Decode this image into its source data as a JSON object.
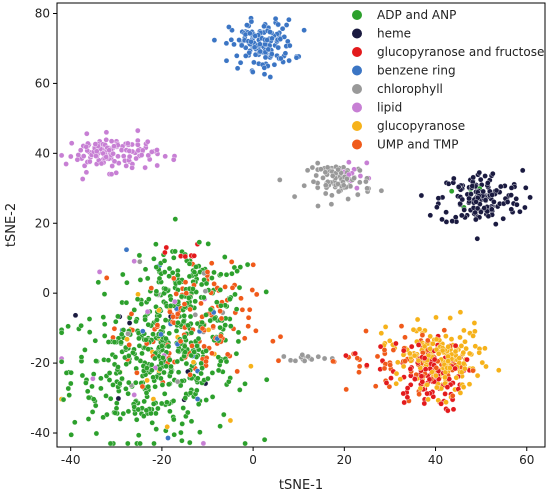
{
  "chart_data": {
    "type": "scatter",
    "title": "",
    "xlabel": "tSNE-1",
    "ylabel": "tSNE-2",
    "xlim": [
      -43,
      64
    ],
    "ylim": [
      -44,
      83
    ],
    "xticks": [
      -40,
      -20,
      0,
      20,
      40,
      60
    ],
    "yticks": [
      -40,
      -20,
      0,
      20,
      40,
      60,
      80
    ],
    "grid": false,
    "legend_position": "top-right",
    "series": [
      {
        "name": "ADP and ANP",
        "color": "#2ca02c",
        "clusters": [
          {
            "cx": -22,
            "cy": -22,
            "sx": 9,
            "sy": 10,
            "n": 360
          },
          {
            "cx": -14,
            "cy": -5,
            "sx": 7,
            "sy": 8,
            "n": 160
          },
          {
            "cx": -17,
            "cy": 5,
            "sx": 5,
            "sy": 4,
            "n": 40
          },
          {
            "cx": 45,
            "cy": 29,
            "sx": 2,
            "sy": 2,
            "n": 6
          }
        ]
      },
      {
        "name": "heme",
        "color": "#1a1a40",
        "clusters": [
          {
            "cx": 50,
            "cy": 27,
            "sx": 4.5,
            "sy": 4,
            "n": 150
          },
          {
            "cx": -18,
            "cy": -15,
            "sx": 8,
            "sy": 8,
            "n": 8
          }
        ]
      },
      {
        "name": "glucopyranose and fructose",
        "color": "#e31a1c",
        "clusters": [
          {
            "cx": 38,
            "cy": -24,
            "sx": 4,
            "sy": 5,
            "n": 90
          },
          {
            "cx": 32,
            "cy": -19,
            "sx": 6,
            "sy": 3,
            "n": 20
          },
          {
            "cx": -15,
            "cy": 11,
            "sx": 2,
            "sy": 1.5,
            "n": 8
          }
        ]
      },
      {
        "name": "benzene ring",
        "color": "#3b75c4",
        "clusters": [
          {
            "cx": 2,
            "cy": 71,
            "sx": 3.5,
            "sy": 3.5,
            "n": 150
          },
          {
            "cx": -15,
            "cy": -10,
            "sx": 8,
            "sy": 10,
            "n": 20
          }
        ]
      },
      {
        "name": "chlorophyll",
        "color": "#999999",
        "clusters": [
          {
            "cx": 19,
            "cy": 32,
            "sx": 3.5,
            "sy": 2.5,
            "n": 80
          },
          {
            "cx": 12,
            "cy": -18.5,
            "sx": 3,
            "sy": 0.4,
            "n": 15
          },
          {
            "cx": -20,
            "cy": -10,
            "sx": 8,
            "sy": 10,
            "n": 10
          }
        ]
      },
      {
        "name": "lipid",
        "color": "#c77fd4",
        "clusters": [
          {
            "cx": -31,
            "cy": 40,
            "sx": 5,
            "sy": 2.5,
            "n": 130
          },
          {
            "cx": 22,
            "cy": 35,
            "sx": 2,
            "sy": 2,
            "n": 12
          },
          {
            "cx": -22,
            "cy": -18,
            "sx": 10,
            "sy": 10,
            "n": 15
          }
        ]
      },
      {
        "name": "glucopyranose",
        "color": "#f6b21a",
        "clusters": [
          {
            "cx": 42,
            "cy": -20,
            "sx": 4,
            "sy": 5,
            "n": 150
          },
          {
            "cx": 37,
            "cy": -15,
            "sx": 5,
            "sy": 3,
            "n": 40
          },
          {
            "cx": -20,
            "cy": -15,
            "sx": 9,
            "sy": 10,
            "n": 20
          }
        ]
      },
      {
        "name": "UMP and TMP",
        "color": "#f05a1a",
        "clusters": [
          {
            "cx": -14,
            "cy": -10,
            "sx": 7,
            "sy": 9,
            "n": 120
          },
          {
            "cx": 37,
            "cy": -20,
            "sx": 5,
            "sy": 5,
            "n": 50
          },
          {
            "cx": 25,
            "cy": -19,
            "sx": 5,
            "sy": 1.5,
            "n": 15
          }
        ]
      }
    ]
  }
}
